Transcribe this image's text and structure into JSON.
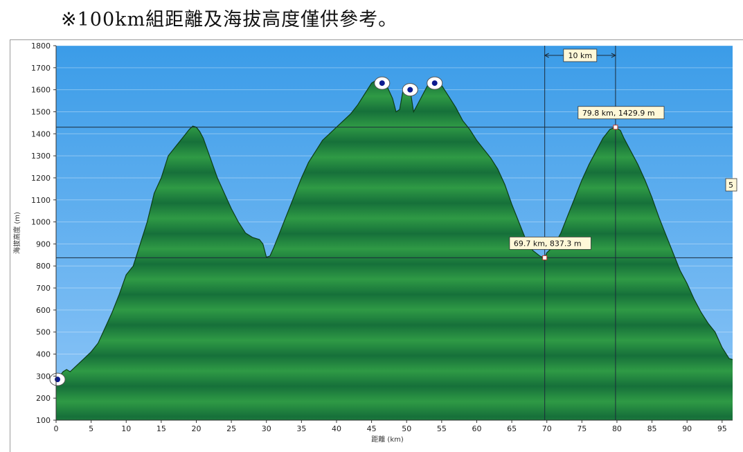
{
  "header": {
    "note": "※100km組距離及海拔高度僅供參考。"
  },
  "chart_data": {
    "type": "area",
    "xlabel": "距離   (km)",
    "ylabel": "海拔高度 (m)",
    "xlim": [
      0,
      96.5
    ],
    "ylim": [
      100,
      1800
    ],
    "x_ticks": [
      0,
      5,
      10,
      15,
      20,
      25,
      30,
      35,
      40,
      45,
      50,
      55,
      60,
      65,
      70,
      75,
      80,
      85,
      90,
      95
    ],
    "y_ticks": [
      100,
      200,
      300,
      400,
      500,
      600,
      700,
      800,
      900,
      1000,
      1100,
      1200,
      1300,
      1400,
      1500,
      1600,
      1700,
      1800
    ],
    "grid": true,
    "colors": {
      "fill": "#2f9a45",
      "fill_dark": "#16703a",
      "line": "#0c3d16",
      "sky_top": "#3b9ce8",
      "sky_bottom": "#8ec6f7"
    },
    "x": [
      0,
      0.5,
      1,
      1.5,
      2,
      3,
      4,
      5,
      6,
      7,
      8,
      9,
      10,
      11,
      12,
      13,
      14,
      15,
      16,
      17,
      18,
      19,
      19.5,
      20,
      20.5,
      21,
      22,
      23,
      24,
      25,
      26,
      27,
      28,
      29,
      29.5,
      30,
      30.5,
      31,
      32,
      33,
      34,
      35,
      36,
      37,
      38,
      39,
      40,
      41,
      42,
      43,
      44,
      45,
      45.5,
      46,
      47,
      48,
      48.5,
      49,
      49.5,
      50,
      50.5,
      51,
      52,
      53,
      54,
      55,
      56,
      57,
      58,
      59,
      60,
      61,
      62,
      63,
      64,
      65,
      66,
      67,
      68,
      69,
      69.7,
      70,
      71,
      72,
      73,
      74,
      75,
      76,
      77,
      78,
      79,
      79.8,
      80.5,
      81,
      82,
      83,
      84,
      85,
      86,
      87,
      88,
      89,
      90,
      91,
      92,
      93,
      94,
      95,
      96,
      96.5
    ],
    "values": [
      280,
      300,
      320,
      330,
      320,
      350,
      380,
      410,
      450,
      520,
      590,
      670,
      760,
      800,
      900,
      1000,
      1130,
      1200,
      1300,
      1340,
      1380,
      1420,
      1435,
      1430,
      1410,
      1380,
      1290,
      1200,
      1130,
      1060,
      1000,
      950,
      930,
      920,
      900,
      840,
      845,
      880,
      960,
      1040,
      1120,
      1200,
      1270,
      1320,
      1370,
      1400,
      1430,
      1460,
      1490,
      1530,
      1580,
      1630,
      1640,
      1640,
      1630,
      1560,
      1500,
      1510,
      1600,
      1600,
      1600,
      1500,
      1560,
      1620,
      1640,
      1620,
      1570,
      1520,
      1460,
      1420,
      1370,
      1330,
      1290,
      1240,
      1170,
      1080,
      1000,
      920,
      870,
      845,
      837.3,
      860,
      890,
      950,
      1030,
      1110,
      1190,
      1260,
      1320,
      1380,
      1420,
      1429.9,
      1415,
      1380,
      1320,
      1260,
      1190,
      1110,
      1020,
      940,
      860,
      780,
      720,
      650,
      590,
      540,
      500,
      430,
      380,
      375
    ],
    "markers": [
      {
        "x": 0.2,
        "y": 285
      },
      {
        "x": 46.5,
        "y": 1630
      },
      {
        "x": 50.5,
        "y": 1600
      },
      {
        "x": 54,
        "y": 1630
      }
    ],
    "cursor_points": [
      {
        "x": 69.7,
        "y": 837.3,
        "label": "69.7 km, 837.3 m"
      },
      {
        "x": 79.8,
        "y": 1429.9,
        "label": "79.8 km, 1429.9 m"
      }
    ],
    "span_label": "10 km",
    "cut_label": "5"
  }
}
